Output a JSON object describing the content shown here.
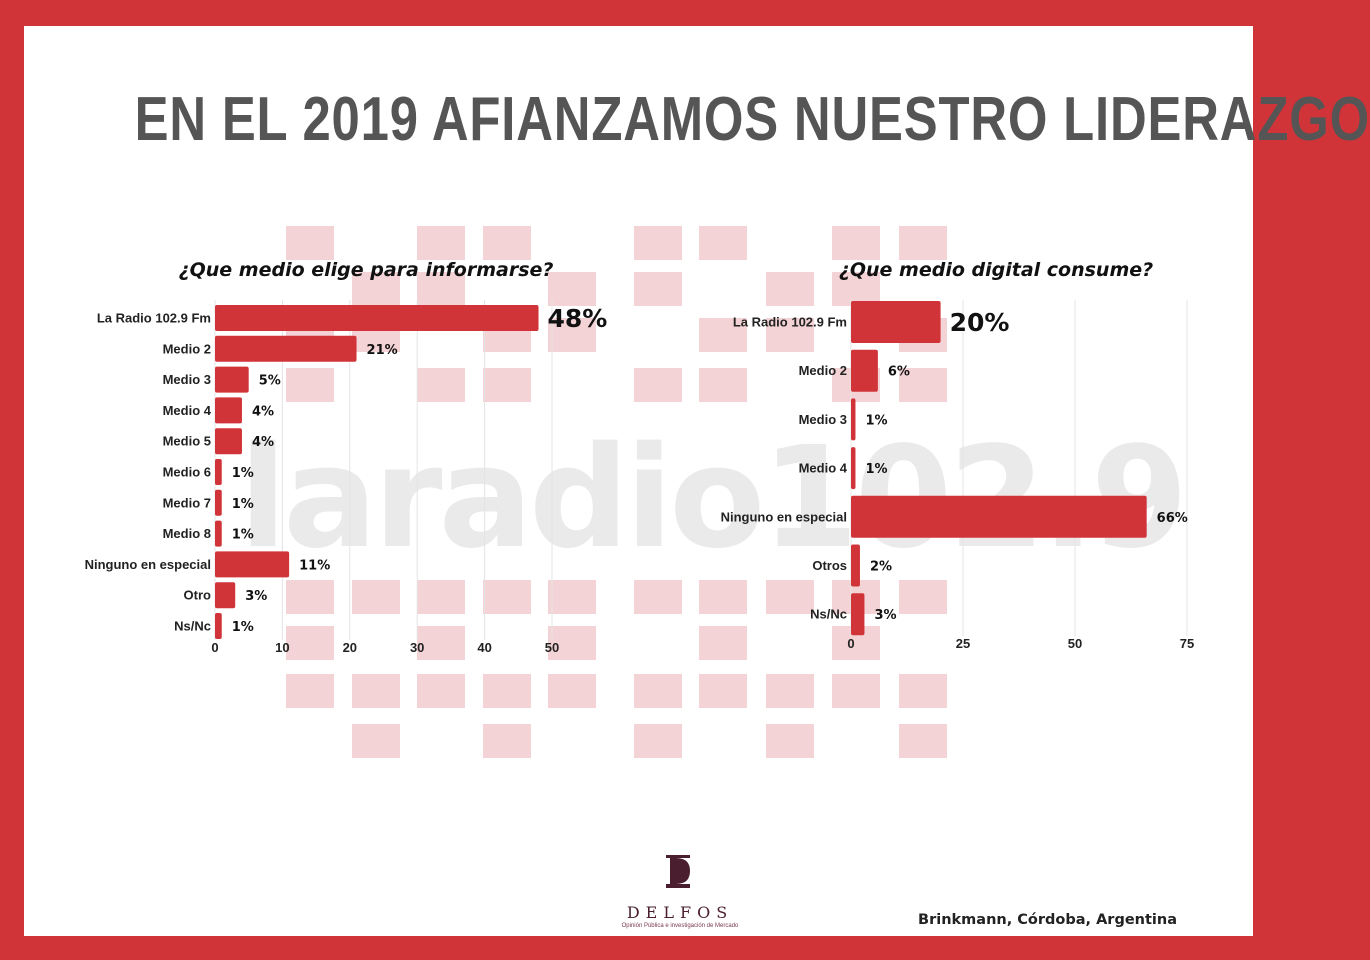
{
  "title": "EN EL 2019 AFIANZAMOS NUESTRO LIDERAZGO",
  "watermark": "laradio102.9",
  "colors": {
    "frame": "#d13438",
    "bar": "#d13438",
    "title": "#555555",
    "watermark_block": "#f3d3d5",
    "watermark_text": "#e6e6e6"
  },
  "logo": {
    "icon": "delfos-d-icon",
    "name": "DELFOS",
    "tagline": "Opinión Pública e investigación de Mercado"
  },
  "location": "Brinkmann, Córdoba, Argentina",
  "chart_data": [
    {
      "type": "bar",
      "orientation": "horizontal",
      "title": "¿Que medio elige para informarse?",
      "categories": [
        "La Radio 102.9 Fm",
        "Medio 2",
        "Medio 3",
        "Medio 4",
        "Medio 5",
        "Medio 6",
        "Medio 7",
        "Medio 8",
        "Ninguno en especial",
        "Otro",
        "Ns/Nc"
      ],
      "values": [
        48,
        21,
        5,
        4,
        4,
        1,
        1,
        1,
        11,
        3,
        1
      ],
      "data_labels": [
        "48%",
        "21%",
        "5%",
        "4%",
        "4%",
        "1%",
        "1%",
        "1%",
        "11%",
        "3%",
        "1%"
      ],
      "xticks": [
        "0",
        "10",
        "20",
        "30",
        "40",
        "50"
      ],
      "xlim": [
        0,
        50
      ],
      "grid": true
    },
    {
      "type": "bar",
      "orientation": "horizontal",
      "title": "¿Que medio digital consume?",
      "categories": [
        "La Radio 102.9 Fm",
        "Medio 2",
        "Medio 3",
        "Medio 4",
        "Ninguno en especial",
        "Otros",
        "Ns/Nc"
      ],
      "values": [
        20,
        6,
        1,
        1,
        66,
        2,
        3
      ],
      "data_labels": [
        "20%",
        "6%",
        "1%",
        "1%",
        "66%",
        "2%",
        "3%"
      ],
      "xticks": [
        "0",
        "25",
        "50",
        "75"
      ],
      "xlim": [
        0,
        75
      ],
      "grid": true
    }
  ]
}
